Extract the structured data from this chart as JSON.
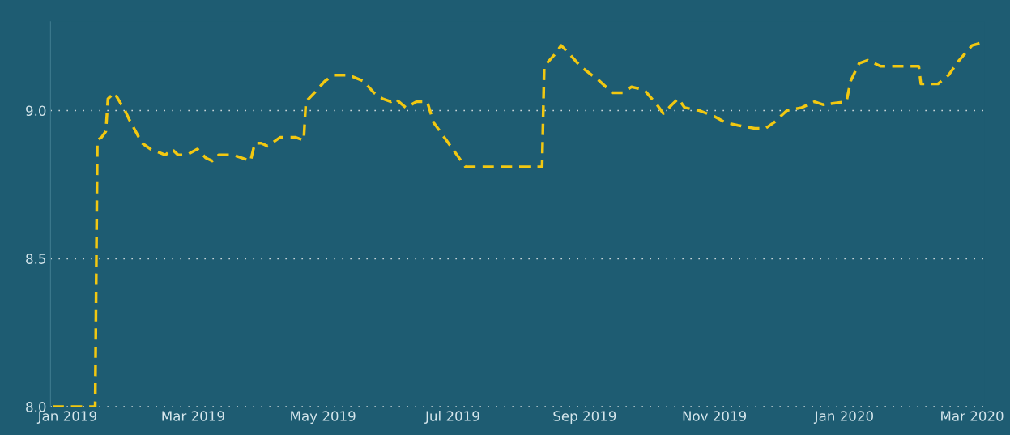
{
  "chart_data": {
    "type": "line",
    "x": [
      "2018-12-25",
      "2019-01-14",
      "2019-01-15",
      "2019-01-17",
      "2019-01-19",
      "2019-01-20",
      "2019-01-23",
      "2019-01-28",
      "2019-01-30",
      "2019-02-05",
      "2019-02-09",
      "2019-02-16",
      "2019-02-19",
      "2019-02-22",
      "2019-02-26",
      "2019-03-03",
      "2019-03-07",
      "2019-03-10",
      "2019-03-13",
      "2019-03-17",
      "2019-03-20",
      "2019-03-28",
      "2019-03-30",
      "2019-04-02",
      "2019-04-05",
      "2019-04-11",
      "2019-04-18",
      "2019-04-22",
      "2019-04-23",
      "2019-04-27",
      "2019-05-02",
      "2019-05-06",
      "2019-05-13",
      "2019-05-20",
      "2019-05-25",
      "2019-05-29",
      "2019-06-02",
      "2019-06-04",
      "2019-06-09",
      "2019-06-14",
      "2019-06-19",
      "2019-06-22",
      "2019-06-28",
      "2019-07-03",
      "2019-07-07",
      "2019-08-12",
      "2019-08-13",
      "2019-08-18",
      "2019-08-21",
      "2019-08-25",
      "2019-08-30",
      "2019-09-08",
      "2019-09-14",
      "2019-09-19",
      "2019-09-23",
      "2019-09-29",
      "2019-10-05",
      "2019-10-08",
      "2019-10-12",
      "2019-10-15",
      "2019-10-18",
      "2019-10-25",
      "2019-11-01",
      "2019-11-06",
      "2019-11-12",
      "2019-11-20",
      "2019-11-25",
      "2019-11-29",
      "2019-12-05",
      "2019-12-12",
      "2019-12-18",
      "2019-12-22",
      "2020-01-02",
      "2020-01-04",
      "2020-01-08",
      "2020-01-12",
      "2020-01-18",
      "2020-01-26",
      "2020-02-05",
      "2020-02-06",
      "2020-02-14",
      "2020-02-19",
      "2020-02-24",
      "2020-03-01",
      "2020-03-06"
    ],
    "series": [
      {
        "color": "#f2c811",
        "values": [
          8.0,
          8.0,
          8.9,
          8.91,
          8.93,
          9.04,
          9.06,
          9.0,
          8.97,
          8.89,
          8.87,
          8.85,
          8.87,
          8.85,
          8.85,
          8.87,
          8.84,
          8.83,
          8.85,
          8.85,
          8.85,
          8.83,
          8.89,
          8.89,
          8.88,
          8.91,
          8.91,
          8.9,
          9.03,
          9.06,
          9.1,
          9.12,
          9.12,
          9.1,
          9.06,
          9.04,
          9.03,
          9.04,
          9.01,
          9.03,
          9.03,
          8.96,
          8.9,
          8.85,
          8.81,
          8.81,
          9.15,
          9.19,
          9.22,
          9.19,
          9.15,
          9.1,
          9.06,
          9.06,
          9.08,
          9.07,
          9.02,
          8.99,
          9.02,
          9.04,
          9.01,
          9.0,
          8.98,
          8.96,
          8.95,
          8.94,
          8.94,
          8.96,
          9.0,
          9.01,
          9.03,
          9.02,
          9.03,
          9.1,
          9.16,
          9.17,
          9.15,
          9.15,
          9.15,
          9.09,
          9.09,
          9.12,
          9.17,
          9.22,
          9.23
        ]
      }
    ],
    "xlim": [
      "2018-12-24",
      "2020-03-07"
    ],
    "xticks": [
      {
        "value": "2019-01-01",
        "label": "Jan 2019"
      },
      {
        "value": "2019-03-01",
        "label": "Mar 2019"
      },
      {
        "value": "2019-05-01",
        "label": "May 2019"
      },
      {
        "value": "2019-07-01",
        "label": "Jul 2019"
      },
      {
        "value": "2019-09-01",
        "label": "Sep 2019"
      },
      {
        "value": "2019-11-01",
        "label": "Nov 2019"
      },
      {
        "value": "2020-01-01",
        "label": "Jan 2020"
      },
      {
        "value": "2020-03-01",
        "label": "Mar 2020"
      }
    ],
    "ylim": [
      8.0,
      9.3
    ],
    "yticks": [
      {
        "value": 8.0,
        "label": "8.0"
      },
      {
        "value": 8.5,
        "label": "8.5"
      },
      {
        "value": 9.0,
        "label": "9.0"
      }
    ],
    "grid": "y",
    "line_style": "dashed",
    "legend": false
  }
}
